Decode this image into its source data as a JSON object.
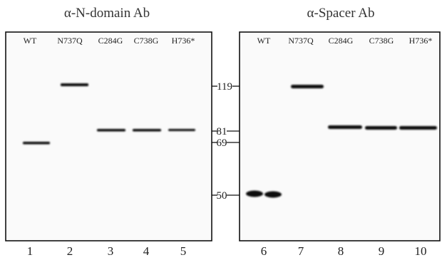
{
  "panels": [
    {
      "title": "α-N-domain Ab",
      "lanes": [
        {
          "label": "WT",
          "number": 1
        },
        {
          "label": "N737Q",
          "number": 2
        },
        {
          "label": "C284G",
          "number": 3
        },
        {
          "label": "C738G",
          "number": 4
        },
        {
          "label": "H736*",
          "number": 5
        }
      ]
    },
    {
      "title": "α-Spacer Ab",
      "lanes": [
        {
          "label": "WT",
          "number": 6
        },
        {
          "label": "N737Q",
          "number": 7
        },
        {
          "label": "C284G",
          "number": 8
        },
        {
          "label": "C738G",
          "number": 9
        },
        {
          "label": "H736*",
          "number": 10
        }
      ]
    }
  ],
  "markers": [
    119,
    81,
    69,
    50
  ]
}
